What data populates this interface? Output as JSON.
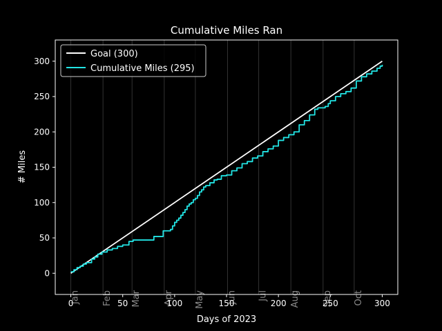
{
  "chart_data": {
    "type": "line",
    "title": "Cumulative Miles Ran",
    "xlabel": "Days of 2023",
    "ylabel": "# Miles",
    "xlim": [
      -15,
      315
    ],
    "ylim": [
      -30,
      330
    ],
    "xticks": [
      0,
      50,
      100,
      150,
      200,
      250,
      300
    ],
    "yticks": [
      0,
      50,
      100,
      150,
      200,
      250,
      300
    ],
    "month_markers": [
      {
        "label": "Jan",
        "day": 0
      },
      {
        "label": "Feb",
        "day": 31
      },
      {
        "label": "Mar",
        "day": 59
      },
      {
        "label": "Apr",
        "day": 90
      },
      {
        "label": "May",
        "day": 120
      },
      {
        "label": "Jun",
        "day": 151
      },
      {
        "label": "Jul",
        "day": 181
      },
      {
        "label": "Aug",
        "day": 212
      },
      {
        "label": "Sep",
        "day": 243
      },
      {
        "label": "Oct",
        "day": 273
      }
    ],
    "legend_position": "upper-left",
    "series": [
      {
        "name": "Goal (300)",
        "color": "#ffffff",
        "x": [
          0,
          300
        ],
        "y": [
          0,
          300
        ]
      },
      {
        "name": "Cumulative Miles (295)",
        "color": "#22e5e5",
        "step": true,
        "x": [
          0,
          3,
          6,
          9,
          12,
          15,
          20,
          23,
          26,
          30,
          35,
          40,
          45,
          50,
          56,
          60,
          65,
          70,
          75,
          80,
          85,
          89,
          94,
          96,
          98,
          100,
          102,
          104,
          106,
          108,
          110,
          112,
          114,
          116,
          118,
          120,
          122,
          124,
          126,
          128,
          130,
          134,
          138,
          141,
          145,
          150,
          155,
          160,
          165,
          170,
          175,
          180,
          185,
          190,
          195,
          200,
          205,
          210,
          215,
          220,
          225,
          230,
          235,
          238,
          240,
          242,
          245,
          248,
          250,
          255,
          260,
          265,
          270,
          275,
          280,
          285,
          290,
          295,
          298,
          300
        ],
        "y": [
          2,
          5,
          8,
          10,
          13,
          15,
          20,
          23,
          27,
          30,
          33,
          35,
          38,
          40,
          45,
          47,
          47,
          47,
          47,
          52,
          52,
          60,
          60,
          62,
          67,
          72,
          75,
          78,
          82,
          86,
          90,
          95,
          98,
          100,
          104,
          106,
          110,
          115,
          118,
          122,
          124,
          128,
          132,
          133,
          138,
          139,
          145,
          149,
          155,
          158,
          163,
          166,
          172,
          176,
          180,
          188,
          192,
          196,
          200,
          210,
          216,
          224,
          232,
          234,
          234,
          234,
          236,
          240,
          244,
          250,
          254,
          257,
          262,
          272,
          278,
          282,
          286,
          290,
          293,
          295
        ]
      }
    ]
  }
}
